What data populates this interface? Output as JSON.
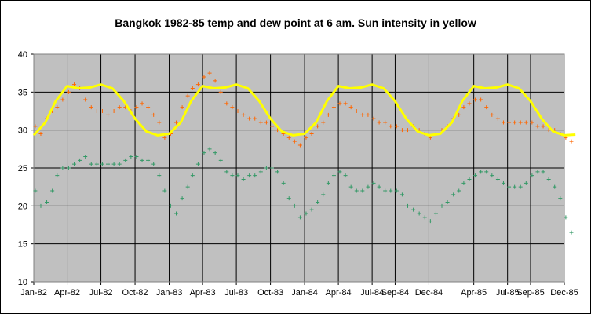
{
  "chart_data": {
    "type": "scatter",
    "title": "Bangkok 1982-85 temp and dew point at 6 am. Sun intensity in yellow",
    "xlabel": "",
    "ylabel": "",
    "xlim": [
      "Jan-82",
      "Dec-85"
    ],
    "ylim": [
      10,
      40
    ],
    "y_ticks": [
      10,
      15,
      20,
      25,
      30,
      35,
      40
    ],
    "x_ticks": [
      "Jan-82",
      "Apr-82",
      "Jul-82",
      "Oct-82",
      "Jan-83",
      "Apr-83",
      "Jul-83",
      "Oct-83",
      "Jan-84",
      "Apr-84",
      "Jul-84",
      "Sep-84",
      "Dec-84",
      "Apr-85",
      "Jul-85",
      "Sep-85",
      "Dec-85"
    ],
    "grid": true,
    "legend": "none",
    "plot_background": "#c0c0c0",
    "series": [
      {
        "marker": "+",
        "color": "#ff6600",
        "points": [
          [
            "1982-01-05",
            30.5
          ],
          [
            "1982-01-20",
            29.5
          ],
          [
            "1982-02-05",
            31.5
          ],
          [
            "1982-02-20",
            32.5
          ],
          [
            "1982-03-05",
            33
          ],
          [
            "1982-03-20",
            34
          ],
          [
            "1982-04-05",
            35
          ],
          [
            "1982-04-20",
            36
          ],
          [
            "1982-05-05",
            35.5
          ],
          [
            "1982-05-20",
            34
          ],
          [
            "1982-06-05",
            33
          ],
          [
            "1982-06-20",
            32.5
          ],
          [
            "1982-07-05",
            32.5
          ],
          [
            "1982-07-20",
            32
          ],
          [
            "1982-08-05",
            32.5
          ],
          [
            "1982-08-20",
            33
          ],
          [
            "1982-09-05",
            33
          ],
          [
            "1982-09-20",
            32.5
          ],
          [
            "1982-10-05",
            33
          ],
          [
            "1982-10-20",
            33.5
          ],
          [
            "1982-11-05",
            33
          ],
          [
            "1982-11-20",
            32
          ],
          [
            "1982-12-05",
            31
          ],
          [
            "1982-12-20",
            29
          ],
          [
            "1983-01-05",
            29.5
          ],
          [
            "1983-01-20",
            31
          ],
          [
            "1983-02-05",
            33
          ],
          [
            "1983-02-20",
            34.5
          ],
          [
            "1983-03-05",
            35.5
          ],
          [
            "1983-03-20",
            36
          ],
          [
            "1983-04-05",
            37
          ],
          [
            "1983-04-20",
            37.5
          ],
          [
            "1983-05-05",
            36.5
          ],
          [
            "1983-05-20",
            35
          ],
          [
            "1983-06-05",
            33.5
          ],
          [
            "1983-06-20",
            33
          ],
          [
            "1983-07-05",
            32.5
          ],
          [
            "1983-07-20",
            32
          ],
          [
            "1983-08-05",
            31.5
          ],
          [
            "1983-08-20",
            31.5
          ],
          [
            "1983-09-05",
            31
          ],
          [
            "1983-09-20",
            31
          ],
          [
            "1983-10-05",
            30.5
          ],
          [
            "1983-10-20",
            30
          ],
          [
            "1983-11-05",
            29.5
          ],
          [
            "1983-11-20",
            29
          ],
          [
            "1983-12-05",
            28.5
          ],
          [
            "1983-12-20",
            28
          ],
          [
            "1984-01-05",
            29
          ],
          [
            "1984-01-20",
            29.5
          ],
          [
            "1984-02-05",
            30.5
          ],
          [
            "1984-02-20",
            31
          ],
          [
            "1984-03-05",
            32
          ],
          [
            "1984-03-20",
            33
          ],
          [
            "1984-04-05",
            33.5
          ],
          [
            "1984-04-20",
            33.5
          ],
          [
            "1984-05-05",
            33
          ],
          [
            "1984-05-20",
            32.5
          ],
          [
            "1984-06-05",
            32
          ],
          [
            "1984-06-20",
            32
          ],
          [
            "1984-07-05",
            31.5
          ],
          [
            "1984-07-20",
            31
          ],
          [
            "1984-08-05",
            31
          ],
          [
            "1984-08-20",
            30.5
          ],
          [
            "1984-09-05",
            30.5
          ],
          [
            "1984-09-20",
            30
          ],
          [
            "1984-10-05",
            30
          ],
          [
            "1984-10-20",
            30.5
          ],
          [
            "1984-11-05",
            30
          ],
          [
            "1984-11-20",
            29.5
          ],
          [
            "1984-12-05",
            29
          ],
          [
            "1984-12-20",
            29.5
          ],
          [
            "1985-01-05",
            30
          ],
          [
            "1985-01-20",
            30.5
          ],
          [
            "1985-02-05",
            31.5
          ],
          [
            "1985-02-20",
            32
          ],
          [
            "1985-03-05",
            33
          ],
          [
            "1985-03-20",
            33.5
          ],
          [
            "1985-04-05",
            34
          ],
          [
            "1985-04-20",
            34
          ],
          [
            "1985-05-05",
            33
          ],
          [
            "1985-05-20",
            32
          ],
          [
            "1985-06-05",
            31.5
          ],
          [
            "1985-06-20",
            31
          ],
          [
            "1985-07-05",
            31
          ],
          [
            "1985-07-20",
            31
          ],
          [
            "1985-08-05",
            31
          ],
          [
            "1985-08-20",
            31
          ],
          [
            "1985-09-05",
            31
          ],
          [
            "1985-09-20",
            30.5
          ],
          [
            "1985-10-05",
            30.5
          ],
          [
            "1985-10-20",
            30
          ],
          [
            "1985-11-05",
            30
          ],
          [
            "1985-11-20",
            29.5
          ],
          [
            "1985-12-05",
            29
          ],
          [
            "1985-12-20",
            28.5
          ]
        ]
      },
      {
        "marker": "+",
        "color": "#339966",
        "points": [
          [
            "1982-01-05",
            22
          ],
          [
            "1982-01-20",
            20
          ],
          [
            "1982-02-05",
            20.5
          ],
          [
            "1982-02-20",
            22
          ],
          [
            "1982-03-05",
            24
          ],
          [
            "1982-03-20",
            25
          ],
          [
            "1982-04-05",
            25
          ],
          [
            "1982-04-20",
            25.5
          ],
          [
            "1982-05-05",
            26
          ],
          [
            "1982-05-20",
            26.5
          ],
          [
            "1982-06-05",
            25.5
          ],
          [
            "1982-06-20",
            25.5
          ],
          [
            "1982-07-05",
            25.5
          ],
          [
            "1982-07-20",
            25.5
          ],
          [
            "1982-08-05",
            25.5
          ],
          [
            "1982-08-20",
            25.5
          ],
          [
            "1982-09-05",
            26
          ],
          [
            "1982-09-20",
            26.5
          ],
          [
            "1982-10-05",
            26.5
          ],
          [
            "1982-10-20",
            26
          ],
          [
            "1982-11-05",
            26
          ],
          [
            "1982-11-20",
            25.5
          ],
          [
            "1982-12-05",
            24
          ],
          [
            "1982-12-20",
            22
          ],
          [
            "1983-01-05",
            20
          ],
          [
            "1983-01-20",
            19
          ],
          [
            "1983-02-05",
            21
          ],
          [
            "1983-02-20",
            22.5
          ],
          [
            "1983-03-05",
            24
          ],
          [
            "1983-03-20",
            25.5
          ],
          [
            "1983-04-05",
            27
          ],
          [
            "1983-04-20",
            27.5
          ],
          [
            "1983-05-05",
            27
          ],
          [
            "1983-05-20",
            26
          ],
          [
            "1983-06-05",
            24.5
          ],
          [
            "1983-06-20",
            24
          ],
          [
            "1983-07-05",
            24
          ],
          [
            "1983-07-20",
            23.5
          ],
          [
            "1983-08-05",
            24
          ],
          [
            "1983-08-20",
            24
          ],
          [
            "1983-09-05",
            24.5
          ],
          [
            "1983-09-20",
            25
          ],
          [
            "1983-10-05",
            25
          ],
          [
            "1983-10-20",
            24.5
          ],
          [
            "1983-11-05",
            23
          ],
          [
            "1983-11-20",
            21
          ],
          [
            "1983-12-05",
            20
          ],
          [
            "1983-12-20",
            18.5
          ],
          [
            "1984-01-05",
            19
          ],
          [
            "1984-01-20",
            19.5
          ],
          [
            "1984-02-05",
            20.5
          ],
          [
            "1984-02-20",
            21.5
          ],
          [
            "1984-03-05",
            23
          ],
          [
            "1984-03-20",
            24
          ],
          [
            "1984-04-05",
            24.5
          ],
          [
            "1984-04-20",
            24
          ],
          [
            "1984-05-05",
            22.5
          ],
          [
            "1984-05-20",
            22
          ],
          [
            "1984-06-05",
            22
          ],
          [
            "1984-06-20",
            22.5
          ],
          [
            "1984-07-05",
            23
          ],
          [
            "1984-07-20",
            22.5
          ],
          [
            "1984-08-05",
            22
          ],
          [
            "1984-08-20",
            22
          ],
          [
            "1984-09-05",
            22
          ],
          [
            "1984-09-20",
            21.5
          ],
          [
            "1984-10-05",
            20
          ],
          [
            "1984-10-20",
            19.5
          ],
          [
            "1984-11-05",
            19
          ],
          [
            "1984-11-20",
            18.5
          ],
          [
            "1984-12-05",
            18
          ],
          [
            "1984-12-20",
            19
          ],
          [
            "1985-01-05",
            20
          ],
          [
            "1985-01-20",
            20.5
          ],
          [
            "1985-02-05",
            21.5
          ],
          [
            "1985-02-20",
            22
          ],
          [
            "1985-03-05",
            23
          ],
          [
            "1985-03-20",
            23.5
          ],
          [
            "1985-04-05",
            24
          ],
          [
            "1985-04-20",
            24.5
          ],
          [
            "1985-05-05",
            24.5
          ],
          [
            "1985-05-20",
            24
          ],
          [
            "1985-06-05",
            23.5
          ],
          [
            "1985-06-20",
            23
          ],
          [
            "1985-07-05",
            22.5
          ],
          [
            "1985-07-20",
            22.5
          ],
          [
            "1985-08-05",
            22.5
          ],
          [
            "1985-08-20",
            23
          ],
          [
            "1985-09-05",
            24
          ],
          [
            "1985-09-20",
            24.5
          ],
          [
            "1985-10-05",
            24.5
          ],
          [
            "1985-10-20",
            23.5
          ],
          [
            "1985-11-05",
            22.5
          ],
          [
            "1985-11-20",
            21
          ],
          [
            "1985-12-05",
            18.5
          ],
          [
            "1985-12-20",
            16.5
          ]
        ]
      },
      {
        "type": "line",
        "color": "#ffff00",
        "points": [
          [
            "1982-01-01",
            29.3
          ],
          [
            "1982-02-01",
            31
          ],
          [
            "1982-03-01",
            33.8
          ],
          [
            "1982-04-01",
            35.8
          ],
          [
            "1982-05-01",
            35.5
          ],
          [
            "1982-06-01",
            35.6
          ],
          [
            "1982-07-01",
            36
          ],
          [
            "1982-08-01",
            35.5
          ],
          [
            "1982-09-01",
            33.8
          ],
          [
            "1982-10-01",
            31.5
          ],
          [
            "1982-11-01",
            29.8
          ],
          [
            "1982-12-01",
            29.3
          ],
          [
            "1983-01-01",
            29.5
          ],
          [
            "1983-02-01",
            31
          ],
          [
            "1983-03-01",
            33.8
          ],
          [
            "1983-04-01",
            35.8
          ],
          [
            "1983-05-01",
            35.5
          ],
          [
            "1983-06-01",
            35.6
          ],
          [
            "1983-07-01",
            36
          ],
          [
            "1983-08-01",
            35.5
          ],
          [
            "1983-09-01",
            33.8
          ],
          [
            "1983-10-01",
            31.5
          ],
          [
            "1983-11-01",
            29.8
          ],
          [
            "1983-12-01",
            29.3
          ],
          [
            "1984-01-01",
            29.5
          ],
          [
            "1984-02-01",
            31
          ],
          [
            "1984-03-01",
            33.8
          ],
          [
            "1984-04-01",
            35.8
          ],
          [
            "1984-05-01",
            35.5
          ],
          [
            "1984-06-01",
            35.6
          ],
          [
            "1984-07-01",
            36
          ],
          [
            "1984-08-01",
            35.5
          ],
          [
            "1984-09-01",
            33.8
          ],
          [
            "1984-10-01",
            31.5
          ],
          [
            "1984-11-01",
            29.8
          ],
          [
            "1984-12-01",
            29.3
          ],
          [
            "1985-01-01",
            29.5
          ],
          [
            "1985-02-01",
            31
          ],
          [
            "1985-03-01",
            33.8
          ],
          [
            "1985-04-01",
            35.8
          ],
          [
            "1985-05-01",
            35.5
          ],
          [
            "1985-06-01",
            35.6
          ],
          [
            "1985-07-01",
            36
          ],
          [
            "1985-08-01",
            35.5
          ],
          [
            "1985-09-01",
            33.8
          ],
          [
            "1985-10-01",
            31.5
          ],
          [
            "1985-11-01",
            29.8
          ],
          [
            "1985-12-01",
            29.3
          ],
          [
            "1985-12-31",
            29.4
          ]
        ]
      }
    ]
  }
}
